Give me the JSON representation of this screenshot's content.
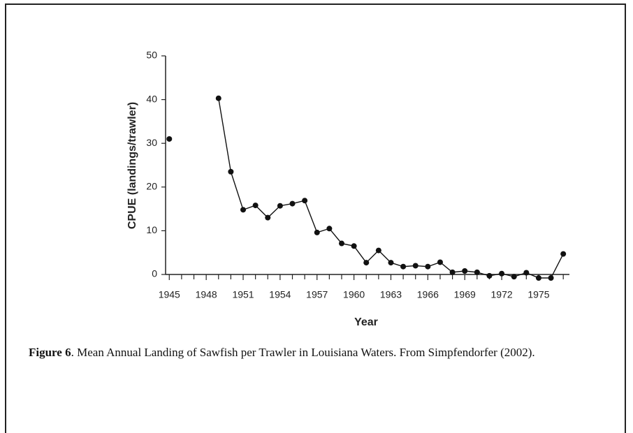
{
  "chart_data": {
    "type": "line",
    "ylabel": "CPUE (landings/trawler)",
    "xlabel": "Year",
    "figure_label": "Figure 6",
    "caption": ". Mean Annual Landing of Sawfish per Trawler in Louisiana Waters.  From Simpfendorfer (2002).",
    "x": [
      1945,
      1946,
      1947,
      1948,
      1949,
      1950,
      1951,
      1952,
      1953,
      1954,
      1955,
      1956,
      1957,
      1958,
      1959,
      1960,
      1961,
      1962,
      1963,
      1964,
      1965,
      1966,
      1967,
      1968,
      1969,
      1970,
      1971,
      1972,
      1973,
      1974,
      1975,
      1976,
      1977
    ],
    "series": [
      {
        "color": "#111111",
        "values": [
          31,
          null,
          null,
          null,
          40.3,
          23.5,
          14.8,
          15.8,
          13,
          15.7,
          16.2,
          16.9,
          9.6,
          10.5,
          7.1,
          6.5,
          2.7,
          5.5,
          2.7,
          1.8,
          2,
          1.8,
          2.8,
          0.5,
          0.8,
          0.5,
          -0.3,
          0.2,
          -0.5,
          0.4,
          -0.8,
          -0.8,
          4.7
        ]
      }
    ],
    "xlim": [
      1944.7,
      1977.5
    ],
    "ylim": [
      0,
      50
    ],
    "xticks": [
      1945,
      1948,
      1951,
      1954,
      1957,
      1960,
      1963,
      1966,
      1969,
      1972,
      1975
    ],
    "xminorticks": [
      1946,
      1947,
      1949,
      1950,
      1952,
      1953,
      1955,
      1956,
      1958,
      1959,
      1961,
      1962,
      1964,
      1965,
      1967,
      1968,
      1970,
      1971,
      1973,
      1974,
      1976,
      1977
    ],
    "yticks": [
      0,
      10,
      20,
      30,
      40,
      50
    ]
  }
}
